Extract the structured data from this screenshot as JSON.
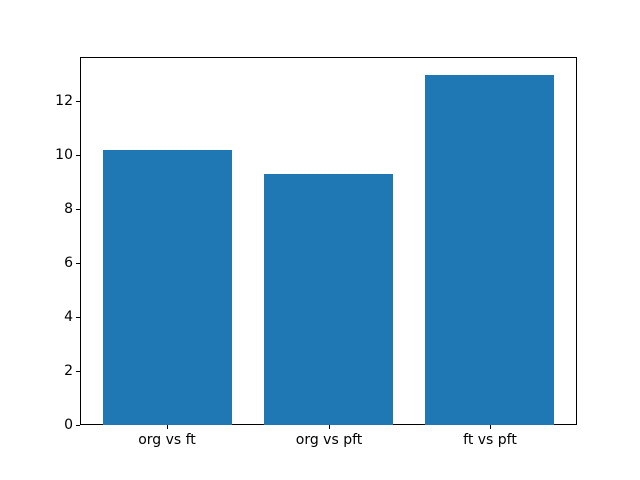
{
  "chart_data": {
    "type": "bar",
    "categories": [
      "org vs ft",
      "org vs pft",
      "ft vs pft"
    ],
    "values": [
      10.2,
      9.3,
      13.0
    ],
    "title": "",
    "xlabel": "",
    "ylabel": "",
    "ylim": [
      0,
      13.65
    ],
    "xlim": [
      -0.54,
      2.54
    ],
    "yticks": [
      0,
      2,
      4,
      6,
      8,
      10,
      12
    ],
    "bar_width": 0.8,
    "bar_color": "#1f77b4",
    "grid": false,
    "legend": null,
    "axes_background": "#ffffff",
    "spine_color": "#000000",
    "tick_color": "#000000"
  }
}
